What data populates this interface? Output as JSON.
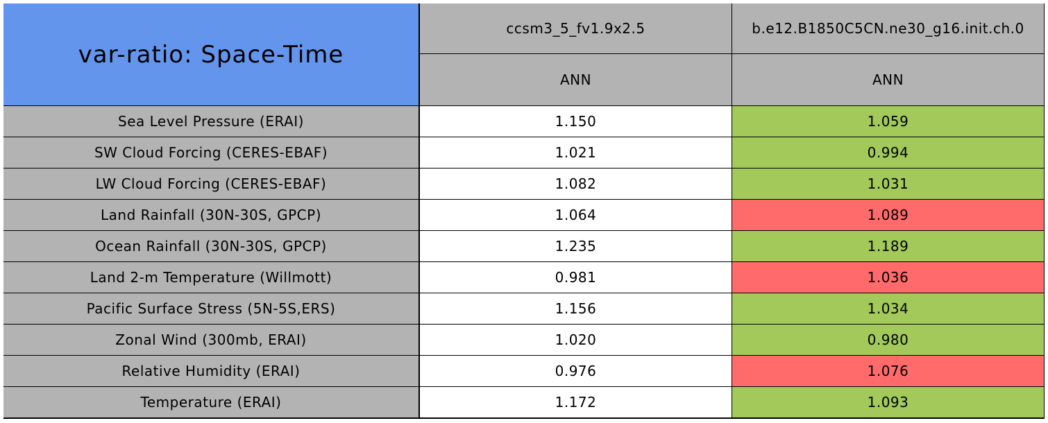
{
  "table": {
    "title": "var-ratio: Space-Time",
    "title_color": "#6495ed",
    "header_color": "#b3b3b3",
    "label_color": "#b3b3b3",
    "columns": [
      {
        "case": "ccsm3_5_fv1.9x2.5",
        "season": "ANN"
      },
      {
        "case": "b.e12.B1850C5CN.ne30_g16.init.ch.0",
        "season": "ANN"
      }
    ],
    "rows": [
      {
        "label": "Sea Level Pressure (ERAI)",
        "cells": [
          {
            "text": "1.150",
            "color": "#ffffff"
          },
          {
            "text": "1.059",
            "color": "#a2c95a"
          }
        ]
      },
      {
        "label": "SW Cloud Forcing (CERES-EBAF)",
        "cells": [
          {
            "text": "1.021",
            "color": "#ffffff"
          },
          {
            "text": "0.994",
            "color": "#a2c95a"
          }
        ]
      },
      {
        "label": "LW Cloud Forcing (CERES-EBAF)",
        "cells": [
          {
            "text": "1.082",
            "color": "#ffffff"
          },
          {
            "text": "1.031",
            "color": "#a2c95a"
          }
        ]
      },
      {
        "label": "Land Rainfall (30N-30S, GPCP)",
        "cells": [
          {
            "text": "1.064",
            "color": "#ffffff"
          },
          {
            "text": "1.089",
            "color": "#ff6b6b"
          }
        ]
      },
      {
        "label": "Ocean Rainfall (30N-30S, GPCP)",
        "cells": [
          {
            "text": "1.235",
            "color": "#ffffff"
          },
          {
            "text": "1.189",
            "color": "#a2c95a"
          }
        ]
      },
      {
        "label": "Land 2-m Temperature (Willmott)",
        "cells": [
          {
            "text": "0.981",
            "color": "#ffffff"
          },
          {
            "text": "1.036",
            "color": "#ff6b6b"
          }
        ]
      },
      {
        "label": "Pacific Surface Stress (5N-5S,ERS)",
        "cells": [
          {
            "text": "1.156",
            "color": "#ffffff"
          },
          {
            "text": "1.034",
            "color": "#a2c95a"
          }
        ]
      },
      {
        "label": "Zonal Wind (300mb, ERAI)",
        "cells": [
          {
            "text": "1.020",
            "color": "#ffffff"
          },
          {
            "text": "0.980",
            "color": "#a2c95a"
          }
        ]
      },
      {
        "label": "Relative Humidity (ERAI)",
        "cells": [
          {
            "text": "0.976",
            "color": "#ffffff"
          },
          {
            "text": "1.076",
            "color": "#ff6b6b"
          }
        ]
      },
      {
        "label": "Temperature (ERAI)",
        "cells": [
          {
            "text": "1.172",
            "color": "#ffffff"
          },
          {
            "text": "1.093",
            "color": "#a2c95a"
          }
        ]
      }
    ]
  }
}
